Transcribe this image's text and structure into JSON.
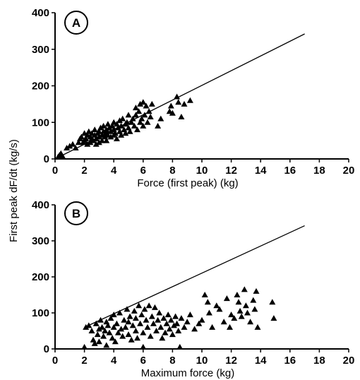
{
  "ylabel": "First peak dF/dt (kg/s)",
  "chart_data": [
    {
      "type": "scatter",
      "panel_label": "A",
      "xlabel": "Force (first peak) (kg)",
      "ylabel": "First peak dF/dt (kg/s)",
      "xlim": [
        0,
        20
      ],
      "ylim": [
        0,
        400
      ],
      "x_ticks": [
        0,
        2,
        4,
        6,
        8,
        10,
        12,
        14,
        16,
        18,
        20
      ],
      "y_ticks": [
        0,
        100,
        200,
        300,
        400
      ],
      "grid": false,
      "line": {
        "x": [
          0,
          17
        ],
        "y": [
          0,
          342
        ]
      },
      "points": [
        [
          0.2,
          5
        ],
        [
          0.3,
          10
        ],
        [
          0.4,
          15
        ],
        [
          0.5,
          8
        ],
        [
          0.8,
          30
        ],
        [
          1.0,
          35
        ],
        [
          1.2,
          40
        ],
        [
          1.4,
          30
        ],
        [
          1.6,
          45
        ],
        [
          1.7,
          55
        ],
        [
          1.8,
          60
        ],
        [
          1.9,
          45
        ],
        [
          2.0,
          50
        ],
        [
          2.0,
          70
        ],
        [
          2.1,
          55
        ],
        [
          2.2,
          65
        ],
        [
          2.2,
          40
        ],
        [
          2.3,
          75
        ],
        [
          2.4,
          60
        ],
        [
          2.4,
          45
        ],
        [
          2.5,
          55
        ],
        [
          2.5,
          70
        ],
        [
          2.6,
          50
        ],
        [
          2.7,
          65
        ],
        [
          2.7,
          80
        ],
        [
          2.8,
          55
        ],
        [
          2.8,
          40
        ],
        [
          2.9,
          70
        ],
        [
          3.0,
          60
        ],
        [
          3.0,
          75
        ],
        [
          3.0,
          45
        ],
        [
          3.1,
          85
        ],
        [
          3.2,
          65
        ],
        [
          3.2,
          50
        ],
        [
          3.3,
          75
        ],
        [
          3.3,
          90
        ],
        [
          3.4,
          60
        ],
        [
          3.5,
          70
        ],
        [
          3.5,
          80
        ],
        [
          3.5,
          50
        ],
        [
          3.6,
          95
        ],
        [
          3.6,
          65
        ],
        [
          3.7,
          85
        ],
        [
          3.8,
          75
        ],
        [
          3.8,
          60
        ],
        [
          3.9,
          90
        ],
        [
          4.0,
          80
        ],
        [
          4.0,
          65
        ],
        [
          4.0,
          100
        ],
        [
          4.1,
          70
        ],
        [
          4.2,
          95
        ],
        [
          4.2,
          55
        ],
        [
          4.3,
          85
        ],
        [
          4.4,
          105
        ],
        [
          4.4,
          75
        ],
        [
          4.5,
          90
        ],
        [
          4.5,
          65
        ],
        [
          4.6,
          110
        ],
        [
          4.7,
          80
        ],
        [
          4.8,
          95
        ],
        [
          4.8,
          70
        ],
        [
          4.9,
          100
        ],
        [
          5.0,
          85
        ],
        [
          5.0,
          120
        ],
        [
          5.1,
          75
        ],
        [
          5.2,
          100
        ],
        [
          5.3,
          110
        ],
        [
          5.4,
          90
        ],
        [
          5.5,
          140
        ],
        [
          5.5,
          120
        ],
        [
          5.6,
          80
        ],
        [
          5.7,
          130
        ],
        [
          5.8,
          150
        ],
        [
          5.8,
          100
        ],
        [
          5.9,
          110
        ],
        [
          6.0,
          155
        ],
        [
          6.0,
          90
        ],
        [
          6.1,
          120
        ],
        [
          6.2,
          145
        ],
        [
          6.3,
          100
        ],
        [
          6.4,
          130
        ],
        [
          6.5,
          115
        ],
        [
          6.6,
          150
        ],
        [
          7.0,
          90
        ],
        [
          7.2,
          110
        ],
        [
          7.8,
          130
        ],
        [
          7.9,
          145
        ],
        [
          8.0,
          125
        ],
        [
          8.3,
          170
        ],
        [
          8.4,
          155
        ],
        [
          8.6,
          115
        ],
        [
          8.8,
          150
        ],
        [
          9.2,
          160
        ]
      ]
    },
    {
      "type": "scatter",
      "panel_label": "B",
      "xlabel": "Maximum force (kg)",
      "ylabel": "First peak dF/dt (kg/s)",
      "xlim": [
        0,
        20
      ],
      "ylim": [
        0,
        400
      ],
      "x_ticks": [
        0,
        2,
        4,
        6,
        8,
        10,
        12,
        14,
        16,
        18,
        20
      ],
      "y_ticks": [
        0,
        100,
        200,
        300,
        400
      ],
      "grid": false,
      "line": {
        "x": [
          2,
          17
        ],
        "y": [
          60,
          342
        ]
      },
      "points": [
        [
          2.0,
          5
        ],
        [
          2.1,
          60
        ],
        [
          2.3,
          65
        ],
        [
          2.5,
          50
        ],
        [
          2.6,
          25
        ],
        [
          2.7,
          15
        ],
        [
          2.8,
          70
        ],
        [
          2.9,
          40
        ],
        [
          3.0,
          55
        ],
        [
          3.0,
          20
        ],
        [
          3.1,
          80
        ],
        [
          3.2,
          60
        ],
        [
          3.3,
          35
        ],
        [
          3.4,
          50
        ],
        [
          3.5,
          75
        ],
        [
          3.5,
          10
        ],
        [
          3.6,
          65
        ],
        [
          3.7,
          45
        ],
        [
          3.8,
          85
        ],
        [
          3.9,
          30
        ],
        [
          4.0,
          60
        ],
        [
          4.0,
          95
        ],
        [
          4.1,
          20
        ],
        [
          4.2,
          70
        ],
        [
          4.3,
          45
        ],
        [
          4.4,
          100
        ],
        [
          4.5,
          55
        ],
        [
          4.6,
          35
        ],
        [
          4.7,
          80
        ],
        [
          4.8,
          60
        ],
        [
          4.9,
          110
        ],
        [
          5.0,
          40
        ],
        [
          5.0,
          75
        ],
        [
          5.1,
          90
        ],
        [
          5.2,
          25
        ],
        [
          5.3,
          65
        ],
        [
          5.4,
          105
        ],
        [
          5.5,
          50
        ],
        [
          5.5,
          85
        ],
        [
          5.6,
          30
        ],
        [
          5.7,
          120
        ],
        [
          5.8,
          70
        ],
        [
          5.9,
          95
        ],
        [
          6.0,
          45
        ],
        [
          6.0,
          5
        ],
        [
          6.1,
          110
        ],
        [
          6.2,
          80
        ],
        [
          6.3,
          60
        ],
        [
          6.4,
          120
        ],
        [
          6.5,
          35
        ],
        [
          6.6,
          90
        ],
        [
          6.7,
          70
        ],
        [
          6.8,
          115
        ],
        [
          6.9,
          50
        ],
        [
          7.0,
          80
        ],
        [
          7.1,
          100
        ],
        [
          7.2,
          60
        ],
        [
          7.3,
          30
        ],
        [
          7.4,
          85
        ],
        [
          7.5,
          45
        ],
        [
          7.6,
          70
        ],
        [
          7.7,
          95
        ],
        [
          7.8,
          55
        ],
        [
          7.9,
          80
        ],
        [
          8.0,
          40
        ],
        [
          8.1,
          65
        ],
        [
          8.2,
          90
        ],
        [
          8.3,
          70
        ],
        [
          8.4,
          50
        ],
        [
          8.5,
          5
        ],
        [
          8.6,
          85
        ],
        [
          8.8,
          60
        ],
        [
          9.0,
          75
        ],
        [
          9.2,
          95
        ],
        [
          9.5,
          55
        ],
        [
          9.8,
          70
        ],
        [
          10.0,
          80
        ],
        [
          10.2,
          150
        ],
        [
          10.4,
          130
        ],
        [
          10.5,
          100
        ],
        [
          10.7,
          60
        ],
        [
          11.0,
          120
        ],
        [
          11.2,
          110
        ],
        [
          11.5,
          75
        ],
        [
          11.7,
          140
        ],
        [
          11.9,
          60
        ],
        [
          12.0,
          95
        ],
        [
          12.2,
          85
        ],
        [
          12.4,
          150
        ],
        [
          12.5,
          130
        ],
        [
          12.6,
          105
        ],
        [
          12.7,
          90
        ],
        [
          12.9,
          165
        ],
        [
          13.0,
          120
        ],
        [
          13.1,
          100
        ],
        [
          13.3,
          75
        ],
        [
          13.5,
          135
        ],
        [
          13.6,
          110
        ],
        [
          13.7,
          160
        ],
        [
          13.8,
          60
        ],
        [
          14.8,
          130
        ],
        [
          14.9,
          85
        ]
      ]
    }
  ]
}
